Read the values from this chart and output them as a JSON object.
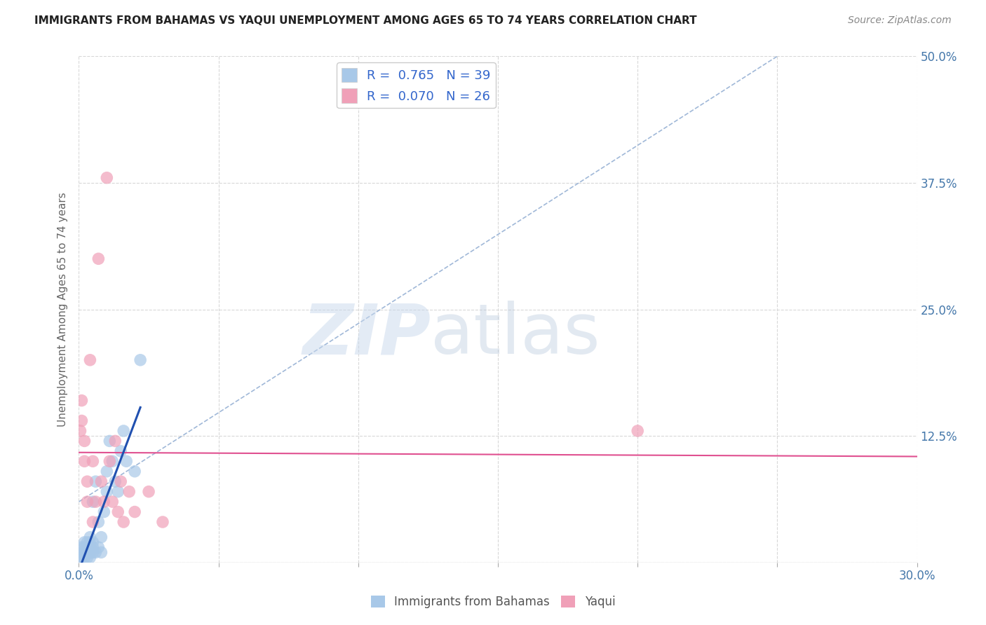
{
  "title": "IMMIGRANTS FROM BAHAMAS VS YAQUI UNEMPLOYMENT AMONG AGES 65 TO 74 YEARS CORRELATION CHART",
  "source": "Source: ZipAtlas.com",
  "ylabel": "Unemployment Among Ages 65 to 74 years",
  "xlim": [
    0.0,
    0.3
  ],
  "ylim": [
    0.0,
    0.5
  ],
  "xticks": [
    0.0,
    0.05,
    0.1,
    0.15,
    0.2,
    0.25,
    0.3
  ],
  "xtick_labels": [
    "0.0%",
    "",
    "",
    "",
    "",
    "",
    "30.0%"
  ],
  "yticks": [
    0.0,
    0.125,
    0.25,
    0.375,
    0.5
  ],
  "ytick_labels_right": [
    "",
    "12.5%",
    "25.0%",
    "37.5%",
    "50.0%"
  ],
  "legend_R_blue": "0.765",
  "legend_N_blue": "39",
  "legend_R_pink": "0.070",
  "legend_N_pink": "26",
  "blue_color": "#a8c8e8",
  "pink_color": "#f0a0b8",
  "trend_blue_color": "#2050b0",
  "trend_pink_color": "#e05090",
  "dash_color": "#a0b8d8",
  "grid_color": "#d8d8d8",
  "background_color": "#ffffff",
  "blue_scatter_x": [
    0.0005,
    0.001,
    0.001,
    0.001,
    0.002,
    0.002,
    0.002,
    0.002,
    0.003,
    0.003,
    0.003,
    0.003,
    0.004,
    0.004,
    0.004,
    0.004,
    0.004,
    0.005,
    0.005,
    0.005,
    0.005,
    0.006,
    0.006,
    0.007,
    0.007,
    0.008,
    0.008,
    0.009,
    0.01,
    0.01,
    0.011,
    0.012,
    0.013,
    0.014,
    0.015,
    0.016,
    0.017,
    0.02,
    0.022
  ],
  "blue_scatter_y": [
    0.005,
    0.005,
    0.01,
    0.015,
    0.005,
    0.01,
    0.015,
    0.02,
    0.005,
    0.01,
    0.015,
    0.02,
    0.005,
    0.01,
    0.015,
    0.02,
    0.025,
    0.01,
    0.015,
    0.02,
    0.06,
    0.01,
    0.08,
    0.015,
    0.04,
    0.01,
    0.025,
    0.05,
    0.07,
    0.09,
    0.12,
    0.1,
    0.08,
    0.07,
    0.11,
    0.13,
    0.1,
    0.09,
    0.2
  ],
  "pink_scatter_x": [
    0.0005,
    0.001,
    0.001,
    0.002,
    0.002,
    0.003,
    0.003,
    0.004,
    0.005,
    0.005,
    0.006,
    0.007,
    0.008,
    0.009,
    0.01,
    0.011,
    0.012,
    0.013,
    0.014,
    0.015,
    0.016,
    0.018,
    0.02,
    0.025,
    0.03,
    0.2
  ],
  "pink_scatter_y": [
    0.13,
    0.14,
    0.16,
    0.1,
    0.12,
    0.06,
    0.08,
    0.2,
    0.04,
    0.1,
    0.06,
    0.3,
    0.08,
    0.06,
    0.38,
    0.1,
    0.06,
    0.12,
    0.05,
    0.08,
    0.04,
    0.07,
    0.05,
    0.07,
    0.04,
    0.13
  ]
}
